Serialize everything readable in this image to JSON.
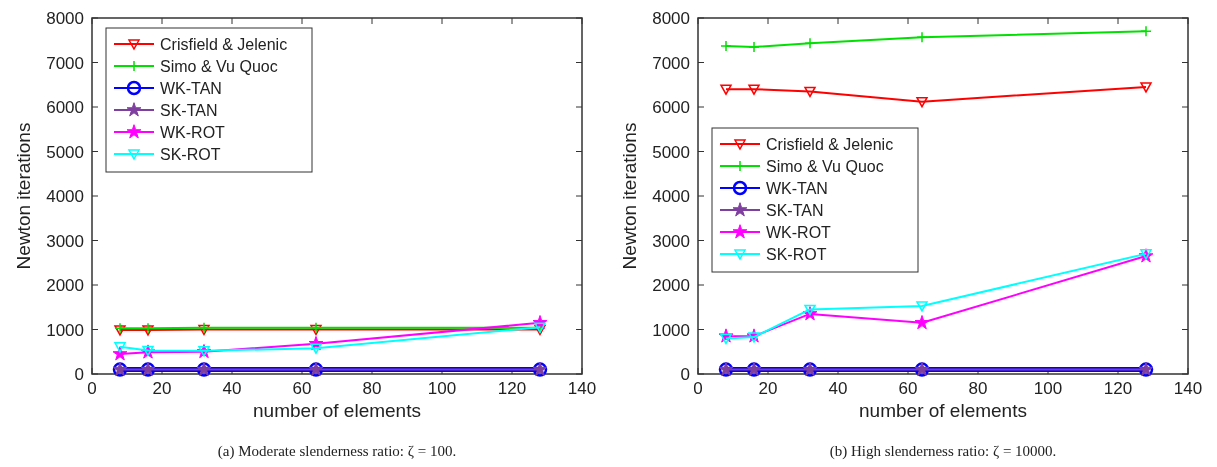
{
  "chart_data": [
    {
      "type": "line",
      "xlabel": "number of elements",
      "ylabel": "Newton iterations",
      "x": [
        8,
        16,
        32,
        64,
        128
      ],
      "xlim": [
        0,
        140
      ],
      "xticks": [
        0,
        20,
        40,
        60,
        80,
        100,
        120,
        140
      ],
      "ylim": [
        0,
        8000
      ],
      "yticks": [
        0,
        1000,
        2000,
        3000,
        4000,
        5000,
        6000,
        7000,
        8000
      ],
      "grid": false,
      "legend": "top left",
      "annotations": [
        "(a)  Moderate slenderness ratio: ζ = 100."
      ],
      "series": [
        {
          "name": "Crisfield & Jelenic",
          "color": "#ff0000",
          "marker": "triangle",
          "values": [
            990,
            990,
            1000,
            1000,
            1000
          ]
        },
        {
          "name": "Simo & Vu Quoc",
          "color": "#00e000",
          "marker": "cross",
          "values": [
            1030,
            1030,
            1040,
            1040,
            1040
          ]
        },
        {
          "name": "WK-TAN",
          "color": "#0000ff",
          "marker": "circle",
          "values": [
            100,
            100,
            100,
            100,
            100
          ]
        },
        {
          "name": "SK-TAN",
          "color": "#7f3f9f",
          "marker": "star",
          "values": [
            100,
            100,
            100,
            100,
            100
          ]
        },
        {
          "name": "WK-ROT",
          "color": "#ff00ff",
          "marker": "star",
          "values": [
            450,
            490,
            500,
            680,
            1150
          ]
        },
        {
          "name": "SK-ROT",
          "color": "#00ffff",
          "marker": "triangle",
          "values": [
            610,
            530,
            520,
            580,
            1050
          ]
        }
      ]
    },
    {
      "type": "line",
      "xlabel": "number of elements",
      "ylabel": "Newton iterations",
      "x": [
        8,
        16,
        32,
        64,
        128
      ],
      "xlim": [
        0,
        140
      ],
      "xticks": [
        0,
        20,
        40,
        60,
        80,
        100,
        120,
        140
      ],
      "ylim": [
        0,
        8000
      ],
      "yticks": [
        0,
        1000,
        2000,
        3000,
        4000,
        5000,
        6000,
        7000,
        8000
      ],
      "grid": false,
      "legend": "left",
      "annotations": [
        "(b)  High slenderness ratio: ζ = 10000."
      ],
      "series": [
        {
          "name": "Crisfield & Jelenic",
          "color": "#ff0000",
          "marker": "triangle",
          "values": [
            6400,
            6400,
            6350,
            6120,
            6450
          ]
        },
        {
          "name": "Simo & Vu Quoc",
          "color": "#00e000",
          "marker": "cross",
          "values": [
            7370,
            7350,
            7430,
            7570,
            7700
          ]
        },
        {
          "name": "WK-TAN",
          "color": "#0000ff",
          "marker": "circle",
          "values": [
            100,
            100,
            100,
            100,
            100
          ]
        },
        {
          "name": "SK-TAN",
          "color": "#7f3f9f",
          "marker": "star",
          "values": [
            100,
            100,
            100,
            100,
            100
          ]
        },
        {
          "name": "WK-ROT",
          "color": "#ff00ff",
          "marker": "star",
          "values": [
            850,
            850,
            1350,
            1150,
            2650
          ]
        },
        {
          "name": "SK-ROT",
          "color": "#00ffff",
          "marker": "triangle",
          "values": [
            800,
            830,
            1450,
            1530,
            2700
          ]
        }
      ]
    }
  ]
}
